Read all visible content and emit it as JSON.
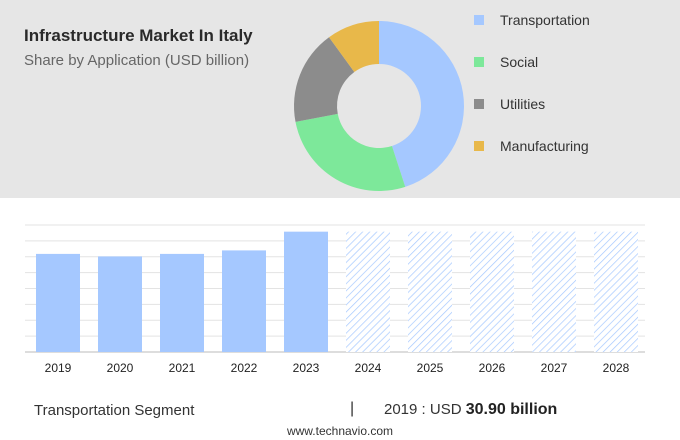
{
  "header": {
    "title": "Infrastructure Market In Italy",
    "subtitle": "Share by Application (USD billion)"
  },
  "legend": [
    {
      "label": "Transportation",
      "color": "#a5c8ff"
    },
    {
      "label": "Social",
      "color": "#7de89a"
    },
    {
      "label": "Utilities",
      "color": "#8c8c8c"
    },
    {
      "label": "Manufacturing",
      "color": "#e8b84a"
    }
  ],
  "footer": {
    "segment": "Transportation Segment",
    "separator": "|",
    "year_label": "2019 : USD",
    "value_label": "30.90 billion",
    "source": "www.technavio.com"
  },
  "chart_data": [
    {
      "type": "pie",
      "title": "Infrastructure Market In Italy",
      "subtitle": "Share by Application (USD billion)",
      "donut": true,
      "categories": [
        "Transportation",
        "Social",
        "Utilities",
        "Manufacturing"
      ],
      "values": [
        45,
        27,
        18,
        10
      ],
      "colors": [
        "#a5c8ff",
        "#7de89a",
        "#8c8c8c",
        "#e8b84a"
      ]
    },
    {
      "type": "bar",
      "categories": [
        "2019",
        "2020",
        "2021",
        "2022",
        "2023",
        "2024",
        "2025",
        "2026",
        "2027",
        "2028"
      ],
      "values": [
        30.9,
        30.1,
        30.9,
        32.0,
        37.9,
        null,
        null,
        null,
        null,
        null
      ],
      "forecast": [
        false,
        false,
        false,
        false,
        false,
        true,
        true,
        true,
        true,
        true
      ],
      "bar_color": "#a5c8ff",
      "forecast_color": "#a5c8ff",
      "grid": true,
      "ylim": [
        0,
        40
      ]
    }
  ]
}
